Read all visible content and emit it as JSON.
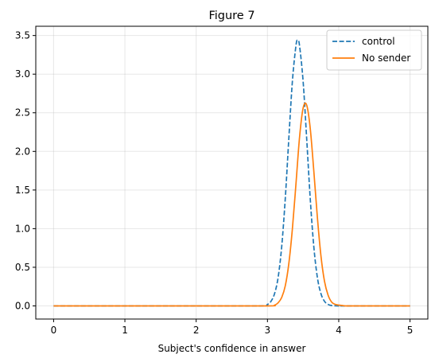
{
  "chart_data": {
    "type": "line",
    "title": "Figure 7",
    "xlabel": "Subject's confidence in answer",
    "ylabel": "",
    "xlim": [
      -0.25,
      5.25
    ],
    "ylim": [
      -0.17,
      3.62
    ],
    "xticks": [
      0,
      1,
      2,
      3,
      4,
      5
    ],
    "xtick_labels": [
      "0",
      "1",
      "2",
      "3",
      "4",
      "5"
    ],
    "yticks": [
      0.0,
      0.5,
      1.0,
      1.5,
      2.0,
      2.5,
      3.0,
      3.5
    ],
    "ytick_labels": [
      "0.0",
      "0.5",
      "1.0",
      "1.5",
      "2.0",
      "2.5",
      "3.0",
      "3.5"
    ],
    "grid": true,
    "legend_position": "top-right",
    "series": [
      {
        "name": "control",
        "color": "#1f77b4",
        "style": "dashed",
        "x": [
          0,
          1,
          2,
          2.9,
          3.0,
          3.05,
          3.1,
          3.15,
          3.2,
          3.25,
          3.3,
          3.35,
          3.4,
          3.425,
          3.45,
          3.5,
          3.55,
          3.6,
          3.65,
          3.7,
          3.75,
          3.8,
          3.85,
          3.9,
          4.0,
          4.1,
          5
        ],
        "y": [
          0,
          0,
          0,
          0.0,
          0.02,
          0.06,
          0.16,
          0.37,
          0.77,
          1.39,
          2.17,
          2.91,
          3.37,
          3.44,
          3.37,
          2.91,
          2.17,
          1.39,
          0.77,
          0.37,
          0.16,
          0.06,
          0.02,
          0.005,
          0.0,
          0,
          0
        ]
      },
      {
        "name": "No sender",
        "color": "#ff7f0e",
        "style": "solid",
        "x": [
          0,
          1,
          2,
          3.0,
          3.1,
          3.15,
          3.2,
          3.25,
          3.3,
          3.35,
          3.4,
          3.45,
          3.5,
          3.55,
          3.6,
          3.65,
          3.7,
          3.75,
          3.8,
          3.85,
          3.9,
          3.95,
          4.0,
          4.05,
          4.1,
          4.2,
          5
        ],
        "y": [
          0,
          0,
          0,
          0.0,
          0.01,
          0.04,
          0.11,
          0.26,
          0.55,
          1.0,
          1.58,
          2.18,
          2.56,
          2.6,
          2.3,
          1.75,
          1.15,
          0.65,
          0.32,
          0.14,
          0.05,
          0.02,
          0.01,
          0.005,
          0.0,
          0,
          0
        ]
      }
    ]
  }
}
